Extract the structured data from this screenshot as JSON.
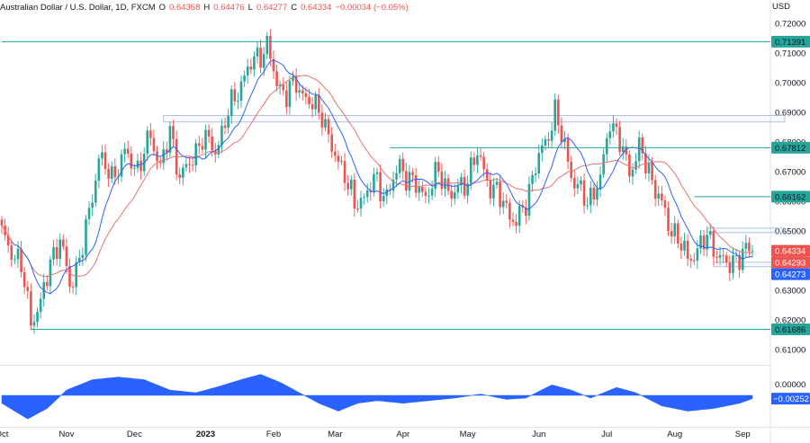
{
  "header": {
    "symbol": "Australian Dollar / U.S. Dollar, 1D, FXCM",
    "o_label": "O",
    "o_value": "0.64368",
    "h_label": "H",
    "h_value": "0.64476",
    "l_label": "L",
    "l_value": "0.64277",
    "c_label": "C",
    "c_value": "0.64334",
    "change": "−0.00034 (−0.05%)"
  },
  "currency": "USD",
  "colors": {
    "up": "#26a69a",
    "down": "#ef5350",
    "ma_fast": "#2962ff",
    "ma_slow": "#e57373",
    "level_line": "#26a69a",
    "osc": "#2962ff"
  },
  "chart_data": {
    "type": "candlestick",
    "y_axis": {
      "min": 0.6052,
      "max": 0.7225,
      "ticks": [
        "0.72000",
        "0.71000",
        "0.70000",
        "0.69000",
        "0.68000",
        "0.67000",
        "0.66000",
        "0.65000",
        "0.64000",
        "0.63000",
        "0.62000",
        "0.61000"
      ]
    },
    "x_axis": {
      "labels": [
        {
          "text": "Oct",
          "i": 0
        },
        {
          "text": "Nov",
          "i": 20
        },
        {
          "text": "Dec",
          "i": 41
        },
        {
          "text": "2023",
          "i": 63
        },
        {
          "text": "Feb",
          "i": 84
        },
        {
          "text": "Mar",
          "i": 103
        },
        {
          "text": "Apr",
          "i": 124
        },
        {
          "text": "May",
          "i": 144
        },
        {
          "text": "Jun",
          "i": 166
        },
        {
          "text": "Jul",
          "i": 187
        },
        {
          "text": "Aug",
          "i": 208
        },
        {
          "text": "Sep",
          "i": 229
        }
      ]
    },
    "horizontal_levels": [
      {
        "label": "0.71391",
        "value": 0.71391,
        "from": 0
      },
      {
        "label": "0.67812",
        "value": 0.67812,
        "from": 120
      },
      {
        "label": "0.66162",
        "value": 0.66162,
        "from": 214
      },
      {
        "label": "0.61686",
        "value": 0.61686,
        "from": 9
      }
    ],
    "zones": [
      {
        "top": 0.689,
        "bottom": 0.6868,
        "from": 50,
        "to": 242
      },
      {
        "top": 0.651,
        "bottom": 0.6495,
        "from": 218,
        "to": 242
      },
      {
        "top": 0.6395,
        "bottom": 0.638,
        "from": 220,
        "to": 242
      }
    ],
    "price_labels": [
      {
        "label": "0.64334",
        "value": 0.64334,
        "color": "#ef5350"
      },
      {
        "label": "0.64293",
        "value": 0.64293,
        "color": "#ef5350"
      },
      {
        "label": "0.64273",
        "value": 0.64273,
        "color": "#2962ff"
      }
    ],
    "path": [
      [
        0,
        0.649
      ],
      [
        6,
        0.638
      ],
      [
        9,
        0.62
      ],
      [
        12,
        0.625
      ],
      [
        15,
        0.64
      ],
      [
        18,
        0.647
      ],
      [
        21,
        0.632
      ],
      [
        24,
        0.64
      ],
      [
        27,
        0.656
      ],
      [
        30,
        0.675
      ],
      [
        34,
        0.668
      ],
      [
        38,
        0.676
      ],
      [
        42,
        0.671
      ],
      [
        46,
        0.682
      ],
      [
        49,
        0.672
      ],
      [
        52,
        0.683
      ],
      [
        55,
        0.669
      ],
      [
        58,
        0.672
      ],
      [
        62,
        0.682
      ],
      [
        66,
        0.677
      ],
      [
        70,
        0.69
      ],
      [
        74,
        0.7
      ],
      [
        78,
        0.708
      ],
      [
        82,
        0.712
      ],
      [
        85,
        0.7
      ],
      [
        88,
        0.696
      ],
      [
        91,
        0.7
      ],
      [
        95,
        0.693
      ],
      [
        99,
        0.69
      ],
      [
        102,
        0.677
      ],
      [
        106,
        0.67
      ],
      [
        109,
        0.658
      ],
      [
        112,
        0.662
      ],
      [
        115,
        0.667
      ],
      [
        119,
        0.662
      ],
      [
        123,
        0.672
      ],
      [
        127,
        0.666
      ],
      [
        131,
        0.662
      ],
      [
        135,
        0.67
      ],
      [
        139,
        0.662
      ],
      [
        143,
        0.666
      ],
      [
        147,
        0.676
      ],
      [
        151,
        0.665
      ],
      [
        155,
        0.66
      ],
      [
        159,
        0.652
      ],
      [
        162,
        0.66
      ],
      [
        165,
        0.672
      ],
      [
        168,
        0.68
      ],
      [
        171,
        0.69
      ],
      [
        174,
        0.678
      ],
      [
        177,
        0.666
      ],
      [
        181,
        0.66
      ],
      [
        185,
        0.667
      ],
      [
        188,
        0.688
      ],
      [
        191,
        0.68
      ],
      [
        194,
        0.67
      ],
      [
        197,
        0.678
      ],
      [
        200,
        0.67
      ],
      [
        203,
        0.662
      ],
      [
        206,
        0.652
      ],
      [
        209,
        0.648
      ],
      [
        212,
        0.64
      ],
      [
        215,
        0.644
      ],
      [
        218,
        0.648
      ],
      [
        221,
        0.643
      ],
      [
        224,
        0.638
      ],
      [
        227,
        0.641
      ],
      [
        230,
        0.643
      ],
      [
        232,
        0.6433
      ]
    ],
    "oscillator": {
      "value_label": "−0.00252",
      "path": [
        [
          0,
          -0.006
        ],
        [
          8,
          -0.018
        ],
        [
          14,
          -0.01
        ],
        [
          20,
          0.004
        ],
        [
          28,
          0.012
        ],
        [
          36,
          0.014
        ],
        [
          44,
          0.012
        ],
        [
          52,
          0.004
        ],
        [
          60,
          0.002
        ],
        [
          66,
          0.006
        ],
        [
          74,
          0.012
        ],
        [
          80,
          0.016
        ],
        [
          86,
          0.01
        ],
        [
          92,
          0.002
        ],
        [
          98,
          -0.006
        ],
        [
          104,
          -0.012
        ],
        [
          110,
          -0.006
        ],
        [
          116,
          -0.004
        ],
        [
          124,
          -0.006
        ],
        [
          132,
          -0.004
        ],
        [
          140,
          -0.002
        ],
        [
          148,
          0.001
        ],
        [
          156,
          -0.003
        ],
        [
          162,
          -0.002
        ],
        [
          170,
          0.008
        ],
        [
          176,
          0.004
        ],
        [
          182,
          -0.002
        ],
        [
          190,
          0.006
        ],
        [
          196,
          0.002
        ],
        [
          204,
          -0.008
        ],
        [
          212,
          -0.012
        ],
        [
          220,
          -0.01
        ],
        [
          228,
          -0.006
        ],
        [
          232,
          -0.0025
        ]
      ]
    }
  }
}
